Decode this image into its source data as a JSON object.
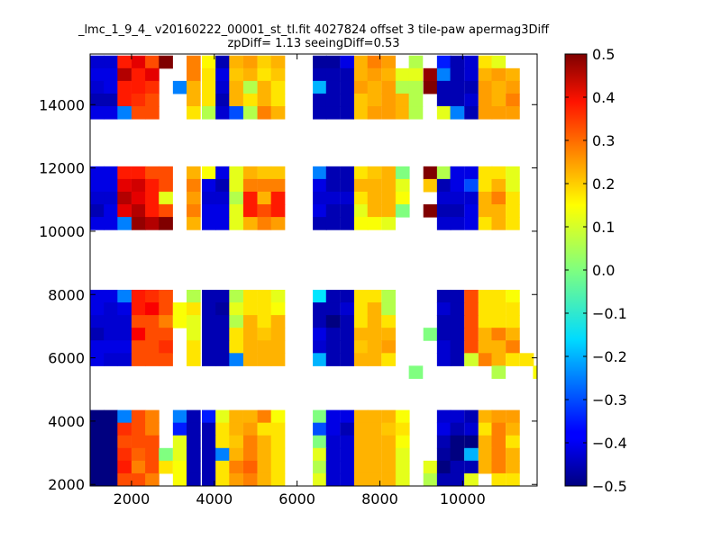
{
  "chart_data": {
    "type": "heatmap",
    "title": "_lmc_1_9_4_ v20160222_00001_st_tl.fit 4027824 offset 3 tile-paw apermag3Diff",
    "subtitle": "zpDiff= 1.13 seeingDiff=0.53",
    "xlabel": "",
    "ylabel": "",
    "xlim": [
      1000,
      11800
    ],
    "ylim": [
      1950,
      15600
    ],
    "xticks": [
      2000,
      4000,
      6000,
      8000,
      10000
    ],
    "xtick_labels": [
      "2000",
      "4000",
      "6000",
      "8000",
      "10000"
    ],
    "yticks": [
      2000,
      4000,
      6000,
      8000,
      10000,
      12000,
      14000
    ],
    "ytick_labels": [
      "2000",
      "4000",
      "6000",
      "8000",
      "10000",
      "12000",
      "14000"
    ],
    "colorbar": {
      "colormap": "jet",
      "range": [
        -0.5,
        0.5
      ],
      "ticks": [
        0.5,
        0.4,
        0.3,
        0.2,
        0.1,
        0.0,
        -0.1,
        -0.2,
        -0.3,
        -0.4,
        -0.5
      ],
      "tick_labels": [
        "0.5",
        "0.4",
        "0.3",
        "0.2",
        "0.1",
        "0.0",
        "−0.1",
        "−0.2",
        "−0.3",
        "−0.4",
        "−0.5"
      ]
    },
    "grid": false,
    "cell_size": [
      330,
      400
    ],
    "column_x": [
      1000,
      1330,
      1660,
      2000,
      2330,
      2660,
      3000,
      3330,
      3700,
      4030,
      4360,
      4700,
      5040,
      5370,
      5700,
      6040,
      6380,
      6700,
      7040,
      7380,
      7700,
      8040,
      8380,
      8700,
      9050,
      9380,
      9700,
      10040,
      10380,
      10700,
      11040,
      11380
    ],
    "row_y": [
      1950,
      2350,
      2750,
      3150,
      3550,
      3950,
      5750,
      6150,
      6550,
      6950,
      7350,
      7750,
      9650,
      10050,
      10450,
      10850,
      11250,
      11650,
      13550,
      13950,
      14350,
      14750,
      15150
    ],
    "rows": [
      {
        "y": 15150,
        "values": [
          -0.42,
          -0.42,
          0.35,
          0.4,
          0.3,
          0.5,
          null,
          0.25,
          0.13,
          -0.45,
          0.2,
          0.22,
          0.17,
          0.2,
          null,
          null,
          -0.47,
          -0.47,
          -0.4,
          0.2,
          0.25,
          0.22,
          null,
          0.05,
          null,
          -0.35,
          -0.45,
          -0.42,
          0.15,
          0.1,
          null,
          null
        ]
      },
      {
        "y": 14750,
        "values": [
          -0.4,
          -0.4,
          0.45,
          0.35,
          0.4,
          null,
          null,
          0.25,
          0.15,
          -0.4,
          0.18,
          0.2,
          0.15,
          0.18,
          null,
          null,
          -0.45,
          -0.45,
          -0.45,
          0.2,
          0.22,
          0.2,
          0.1,
          0.1,
          0.48,
          -0.25,
          -0.45,
          -0.42,
          0.2,
          0.22,
          0.2,
          null
        ]
      },
      {
        "y": 14350,
        "values": [
          -0.42,
          -0.4,
          0.35,
          0.35,
          0.33,
          null,
          -0.25,
          0.2,
          0.15,
          -0.42,
          0.2,
          0.05,
          0.2,
          0.15,
          null,
          null,
          -0.2,
          -0.45,
          -0.45,
          0.22,
          0.2,
          0.22,
          0.05,
          0.05,
          0.5,
          -0.45,
          -0.45,
          -0.45,
          0.22,
          0.2,
          0.22,
          null
        ]
      },
      {
        "y": 13950,
        "values": [
          -0.45,
          -0.45,
          0.35,
          0.33,
          0.3,
          null,
          null,
          0.2,
          0.15,
          -0.45,
          0.2,
          0.15,
          0.2,
          0.15,
          null,
          null,
          -0.45,
          -0.45,
          -0.45,
          0.18,
          0.2,
          0.22,
          0.2,
          0.05,
          null,
          -0.45,
          -0.45,
          -0.42,
          0.22,
          0.2,
          0.25,
          null
        ]
      },
      {
        "y": 13550,
        "values": [
          -0.4,
          -0.4,
          -0.25,
          0.3,
          0.3,
          null,
          null,
          0.15,
          0.05,
          -0.42,
          -0.3,
          0.05,
          0.25,
          0.2,
          null,
          null,
          -0.45,
          -0.45,
          -0.45,
          0.18,
          0.22,
          0.22,
          0.2,
          0.05,
          null,
          0.1,
          -0.25,
          -0.45,
          0.22,
          0.22,
          0.22,
          null
        ]
      },
      {
        "y": 11650,
        "values": [
          -0.4,
          -0.4,
          0.35,
          0.35,
          0.3,
          0.3,
          null,
          0.2,
          0.12,
          -0.4,
          0.1,
          0.2,
          0.18,
          0.18,
          null,
          null,
          -0.25,
          -0.45,
          -0.45,
          0.15,
          0.18,
          0.2,
          0.0,
          null,
          0.5,
          0.05,
          -0.4,
          -0.4,
          0.15,
          0.15,
          0.1,
          null
        ]
      },
      {
        "y": 11250,
        "values": [
          -0.4,
          -0.4,
          0.4,
          0.42,
          0.35,
          0.3,
          null,
          0.25,
          -0.4,
          -0.45,
          0.1,
          0.25,
          0.25,
          0.25,
          null,
          null,
          -0.4,
          -0.45,
          -0.45,
          0.2,
          0.2,
          0.2,
          0.1,
          null,
          0.18,
          -0.45,
          -0.4,
          -0.3,
          0.15,
          0.2,
          0.1,
          null
        ]
      },
      {
        "y": 10850,
        "values": [
          -0.42,
          -0.42,
          0.45,
          0.4,
          0.35,
          0.1,
          null,
          0.22,
          -0.42,
          -0.42,
          0.05,
          0.35,
          0.2,
          0.35,
          null,
          null,
          -0.42,
          -0.42,
          -0.42,
          0.15,
          0.2,
          0.2,
          0.12,
          null,
          null,
          -0.42,
          -0.42,
          -0.42,
          0.2,
          0.25,
          0.15,
          null
        ]
      },
      {
        "y": 10450,
        "values": [
          -0.45,
          -0.4,
          0.4,
          0.45,
          0.35,
          0.3,
          null,
          0.25,
          -0.4,
          -0.4,
          0.1,
          0.35,
          0.3,
          0.35,
          null,
          null,
          -0.4,
          -0.45,
          -0.45,
          0.1,
          0.2,
          0.2,
          0.0,
          null,
          0.5,
          -0.45,
          -0.45,
          -0.4,
          0.2,
          0.2,
          0.15,
          null
        ]
      },
      {
        "y": 10050,
        "values": [
          -0.4,
          -0.4,
          -0.25,
          0.48,
          0.45,
          0.5,
          null,
          0.2,
          -0.4,
          -0.4,
          0.1,
          0.2,
          0.25,
          0.22,
          null,
          null,
          -0.45,
          -0.45,
          -0.45,
          0.12,
          0.12,
          0.1,
          null,
          null,
          null,
          -0.42,
          -0.42,
          -0.4,
          0.15,
          0.2,
          0.15,
          null
        ]
      },
      {
        "y": 7750,
        "values": [
          -0.4,
          -0.4,
          -0.25,
          0.35,
          0.33,
          0.3,
          null,
          0.05,
          -0.45,
          -0.45,
          0.05,
          0.15,
          0.15,
          0.1,
          null,
          null,
          -0.15,
          -0.45,
          -0.45,
          0.15,
          0.15,
          0.05,
          null,
          null,
          null,
          -0.45,
          -0.45,
          0.3,
          0.15,
          0.15,
          0.12,
          null
        ]
      },
      {
        "y": 7350,
        "values": [
          -0.4,
          -0.42,
          -0.4,
          0.35,
          0.38,
          0.3,
          0.12,
          0.15,
          -0.45,
          -0.47,
          0.1,
          0.15,
          0.15,
          0.12,
          null,
          null,
          -0.45,
          -0.45,
          -0.42,
          0.15,
          0.2,
          0.05,
          null,
          null,
          null,
          -0.42,
          -0.45,
          0.3,
          0.15,
          0.15,
          0.15,
          null
        ]
      },
      {
        "y": 6950,
        "values": [
          -0.42,
          -0.42,
          -0.42,
          0.3,
          0.3,
          0.25,
          0.12,
          0.1,
          -0.45,
          -0.45,
          0.05,
          0.2,
          0.15,
          0.2,
          null,
          null,
          -0.45,
          -0.5,
          -0.45,
          0.15,
          0.2,
          0.15,
          null,
          null,
          null,
          -0.45,
          -0.45,
          0.3,
          0.15,
          0.15,
          0.15,
          null
        ]
      },
      {
        "y": 6550,
        "values": [
          -0.45,
          -0.42,
          -0.42,
          0.38,
          0.3,
          0.3,
          null,
          0.1,
          -0.45,
          -0.45,
          0.15,
          0.2,
          0.18,
          0.2,
          null,
          null,
          -0.4,
          -0.45,
          -0.45,
          0.2,
          0.2,
          0.2,
          null,
          null,
          0.0,
          -0.45,
          -0.45,
          0.3,
          0.2,
          0.25,
          0.2,
          null
        ]
      },
      {
        "y": 6150,
        "values": [
          -0.4,
          -0.4,
          -0.4,
          0.3,
          0.3,
          0.33,
          null,
          0.15,
          -0.45,
          -0.45,
          0.15,
          0.2,
          0.2,
          0.2,
          null,
          null,
          -0.42,
          -0.45,
          -0.45,
          0.18,
          0.2,
          0.22,
          null,
          null,
          null,
          -0.42,
          -0.45,
          0.3,
          0.2,
          0.2,
          0.25,
          null
        ]
      },
      {
        "y": 5750,
        "values": [
          -0.4,
          -0.42,
          -0.42,
          0.3,
          0.3,
          0.3,
          null,
          0.15,
          -0.45,
          -0.45,
          -0.25,
          0.2,
          0.2,
          0.2,
          null,
          null,
          -0.2,
          -0.45,
          -0.45,
          0.2,
          0.2,
          0.15,
          null,
          null,
          null,
          -0.42,
          -0.45,
          0.08,
          0.25,
          0.2,
          0.15,
          0.15
        ]
      },
      {
        "y": 3950,
        "values": [
          -0.5,
          -0.5,
          -0.25,
          0.3,
          0.25,
          null,
          -0.25,
          -0.45,
          -0.35,
          0.1,
          0.2,
          0.2,
          0.25,
          0.12,
          null,
          null,
          0.0,
          -0.4,
          -0.4,
          0.2,
          0.2,
          0.2,
          0.12,
          null,
          null,
          -0.42,
          -0.42,
          -0.45,
          0.2,
          0.22,
          0.22,
          null
        ]
      },
      {
        "y": 3550,
        "values": [
          -0.5,
          -0.5,
          0.33,
          0.3,
          0.25,
          null,
          -0.35,
          -0.45,
          -0.45,
          0.15,
          0.2,
          0.22,
          0.15,
          0.15,
          null,
          null,
          -0.3,
          -0.4,
          -0.45,
          0.2,
          0.2,
          0.18,
          0.15,
          null,
          null,
          -0.4,
          -0.45,
          -0.42,
          0.15,
          0.25,
          0.2,
          null
        ]
      },
      {
        "y": 3150,
        "values": [
          -0.5,
          -0.5,
          0.3,
          0.3,
          0.3,
          null,
          0.1,
          -0.45,
          -0.45,
          0.15,
          0.18,
          0.25,
          0.2,
          0.15,
          null,
          null,
          0.0,
          -0.42,
          -0.42,
          0.2,
          0.2,
          0.2,
          0.12,
          null,
          null,
          -0.45,
          -0.5,
          -0.5,
          0.2,
          0.25,
          0.15,
          null
        ]
      },
      {
        "y": 2750,
        "values": [
          -0.5,
          -0.5,
          0.33,
          0.28,
          0.3,
          0.0,
          0.1,
          -0.45,
          -0.45,
          -0.25,
          0.2,
          0.25,
          0.2,
          0.15,
          null,
          null,
          0.1,
          -0.42,
          -0.42,
          0.2,
          0.2,
          0.2,
          0.1,
          null,
          null,
          -0.47,
          -0.5,
          -0.2,
          0.2,
          0.25,
          0.2,
          null
        ]
      },
      {
        "y": 2350,
        "values": [
          -0.5,
          -0.5,
          0.35,
          0.25,
          0.3,
          0.15,
          0.12,
          -0.45,
          -0.45,
          0.15,
          0.25,
          0.28,
          0.2,
          0.15,
          null,
          null,
          0.05,
          -0.42,
          -0.42,
          0.2,
          0.2,
          0.2,
          0.1,
          null,
          0.1,
          -0.5,
          -0.45,
          -0.45,
          0.2,
          0.25,
          0.2,
          null
        ]
      },
      {
        "y": 1950,
        "values": [
          -0.5,
          -0.5,
          0.3,
          0.3,
          0.25,
          null,
          0.12,
          -0.45,
          -0.45,
          0.15,
          0.22,
          0.25,
          0.2,
          0.15,
          null,
          null,
          0.1,
          -0.42,
          -0.42,
          0.2,
          0.2,
          0.2,
          0.1,
          null,
          0.05,
          -0.45,
          -0.45,
          0.1,
          null,
          0.15,
          0.15,
          null
        ]
      }
    ],
    "extra_cells": [
      {
        "x": 8700,
        "y": 5350,
        "value": 0.0
      },
      {
        "x": 10700,
        "y": 5350,
        "value": 0.05
      },
      {
        "x": 11700,
        "y": 5350,
        "value": 0.12
      }
    ]
  }
}
